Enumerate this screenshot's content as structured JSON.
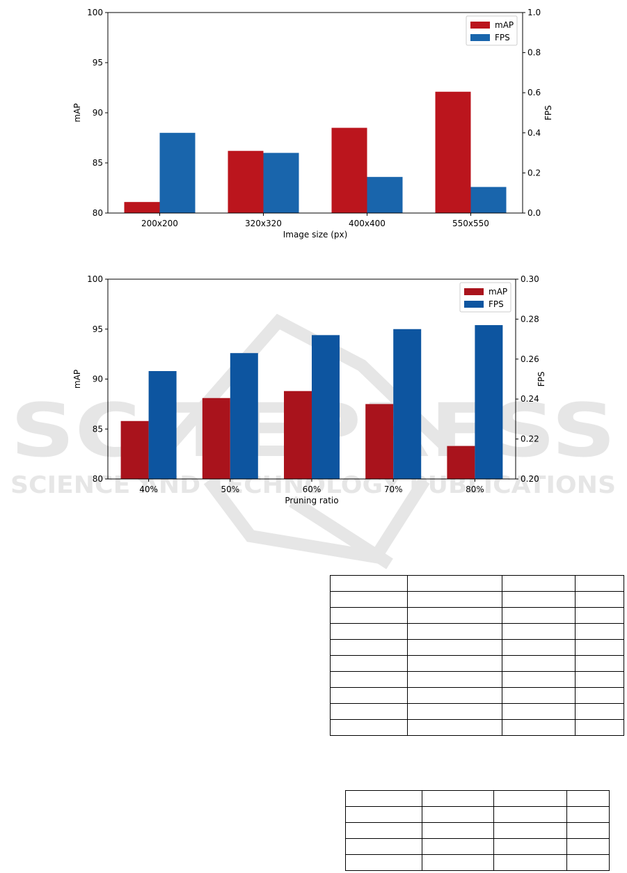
{
  "watermark": {
    "line1": "SCITEPRESS",
    "line2": "SCIENCE AND TECHNOLOGY PUBLICATIONS",
    "color": "#e6e6e6"
  },
  "chart_data": [
    {
      "type": "bar",
      "categories": [
        "200x200",
        "320x320",
        "400x400",
        "550x550"
      ],
      "xlabel": "Image size (px)",
      "ylabel": "mAP",
      "y2label": "FPS",
      "ylim": [
        80,
        100
      ],
      "y2lim": [
        0,
        1.0
      ],
      "yticks": [
        "80",
        "85",
        "90",
        "95",
        "100"
      ],
      "y2ticks": [
        "0.0",
        "0.2",
        "0.4",
        "0.6",
        "0.8",
        "1.0"
      ],
      "series": [
        {
          "name": "mAP",
          "axis": "left",
          "color": "#bb151d",
          "values": [
            81.1,
            86.2,
            88.5,
            92.1
          ]
        },
        {
          "name": "FPS",
          "axis": "right",
          "color": "#1965ac",
          "values": [
            0.4,
            0.3,
            0.18,
            0.13
          ]
        }
      ],
      "legend": "top-right",
      "grid": false
    },
    {
      "type": "bar",
      "categories": [
        "40%",
        "50%",
        "60%",
        "70%",
        "80%"
      ],
      "xlabel": "Pruning ratio",
      "ylabel": "mAP",
      "y2label": "FPS",
      "ylim": [
        80,
        100
      ],
      "y2lim": [
        0.2,
        0.3
      ],
      "yticks": [
        "80",
        "85",
        "90",
        "95",
        "100"
      ],
      "y2ticks": [
        "0.20",
        "0.22",
        "0.24",
        "0.26",
        "0.28",
        "0.30"
      ],
      "series": [
        {
          "name": "mAP",
          "axis": "left",
          "color": "#a9131c",
          "values": [
            85.8,
            88.1,
            88.8,
            87.5,
            83.3
          ]
        },
        {
          "name": "FPS",
          "axis": "right",
          "color": "#0d55a0",
          "values": [
            0.254,
            0.263,
            0.272,
            0.275,
            0.277
          ]
        }
      ],
      "legend": "top-right",
      "grid": false
    }
  ]
}
